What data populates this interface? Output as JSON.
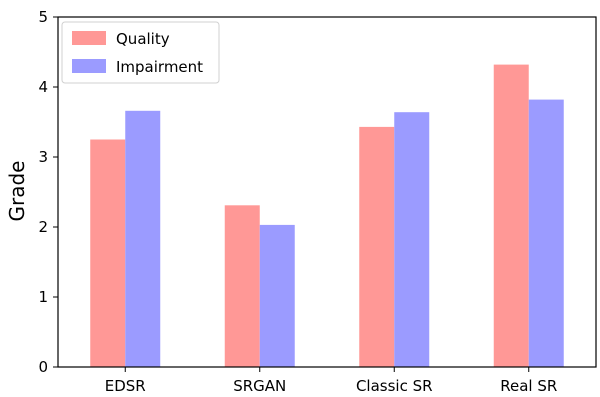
{
  "chart_data": {
    "type": "bar",
    "title": "",
    "xlabel": "",
    "ylabel": "Grade",
    "ylim": [
      0,
      5
    ],
    "yticks": [
      "0",
      "1",
      "2",
      "3",
      "4",
      "5"
    ],
    "categories": [
      "EDSR",
      "SRGAN",
      "Classic SR",
      "Real SR"
    ],
    "series": [
      {
        "name": "Quality",
        "color": "#ff9896",
        "values": [
          3.25,
          2.31,
          3.43,
          4.32
        ]
      },
      {
        "name": "Impairment",
        "color": "#9b9bff",
        "values": [
          3.66,
          2.03,
          3.64,
          3.82
        ]
      }
    ],
    "grid": false,
    "legend_position": "top-left"
  }
}
